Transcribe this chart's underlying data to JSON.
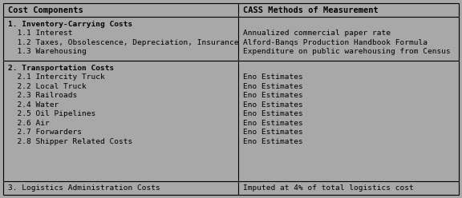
{
  "col1_header": "Cost Components",
  "col2_header": "CASS Methods of Measurement",
  "background_color": "#a8a8a8",
  "border_color": "#000000",
  "text_color": "#000000",
  "col_split": 0.515,
  "font_size": 6.8,
  "header_font_size": 7.5,
  "rows": [
    {
      "col1": [
        "1. Inventory-Carrying Costs",
        "  1.1 Interest",
        "  1.2 Taxes, Obsolescence, Depreciation, Insurance",
        "  1.3 Warehousing"
      ],
      "col2": [
        "",
        "Annualized commercial paper rate",
        "Alford-Banqs Production Handbook Formula",
        "Expenditure on public warehousing from Census"
      ],
      "col1_bold": [
        true,
        false,
        false,
        false
      ]
    },
    {
      "col1": [
        "2. Transportation Costs",
        "  2.1 Intercity Truck",
        "  2.2 Local Truck",
        "  2.3 Railroads",
        "  2.4 Water",
        "  2.5 Oil Pipelines",
        "  2.6 Air",
        "  2.7 Forwarders",
        "  2.8 Shipper Related Costs"
      ],
      "col2": [
        "",
        "Eno Estimates",
        "Eno Estimates",
        "Eno Estimates",
        "Eno Estimates",
        "Eno Estimates",
        "Eno Estimates",
        "Eno Estimates",
        "Eno Estimates"
      ],
      "col1_bold": [
        true,
        false,
        false,
        false,
        false,
        false,
        false,
        false,
        false
      ]
    },
    {
      "col1": [
        "3. Logistics Administration Costs"
      ],
      "col2": [
        "Imputed at 4% of total logistics cost"
      ],
      "col1_bold": [
        false
      ]
    }
  ],
  "fig_width": 5.76,
  "fig_height": 2.48,
  "dpi": 100
}
